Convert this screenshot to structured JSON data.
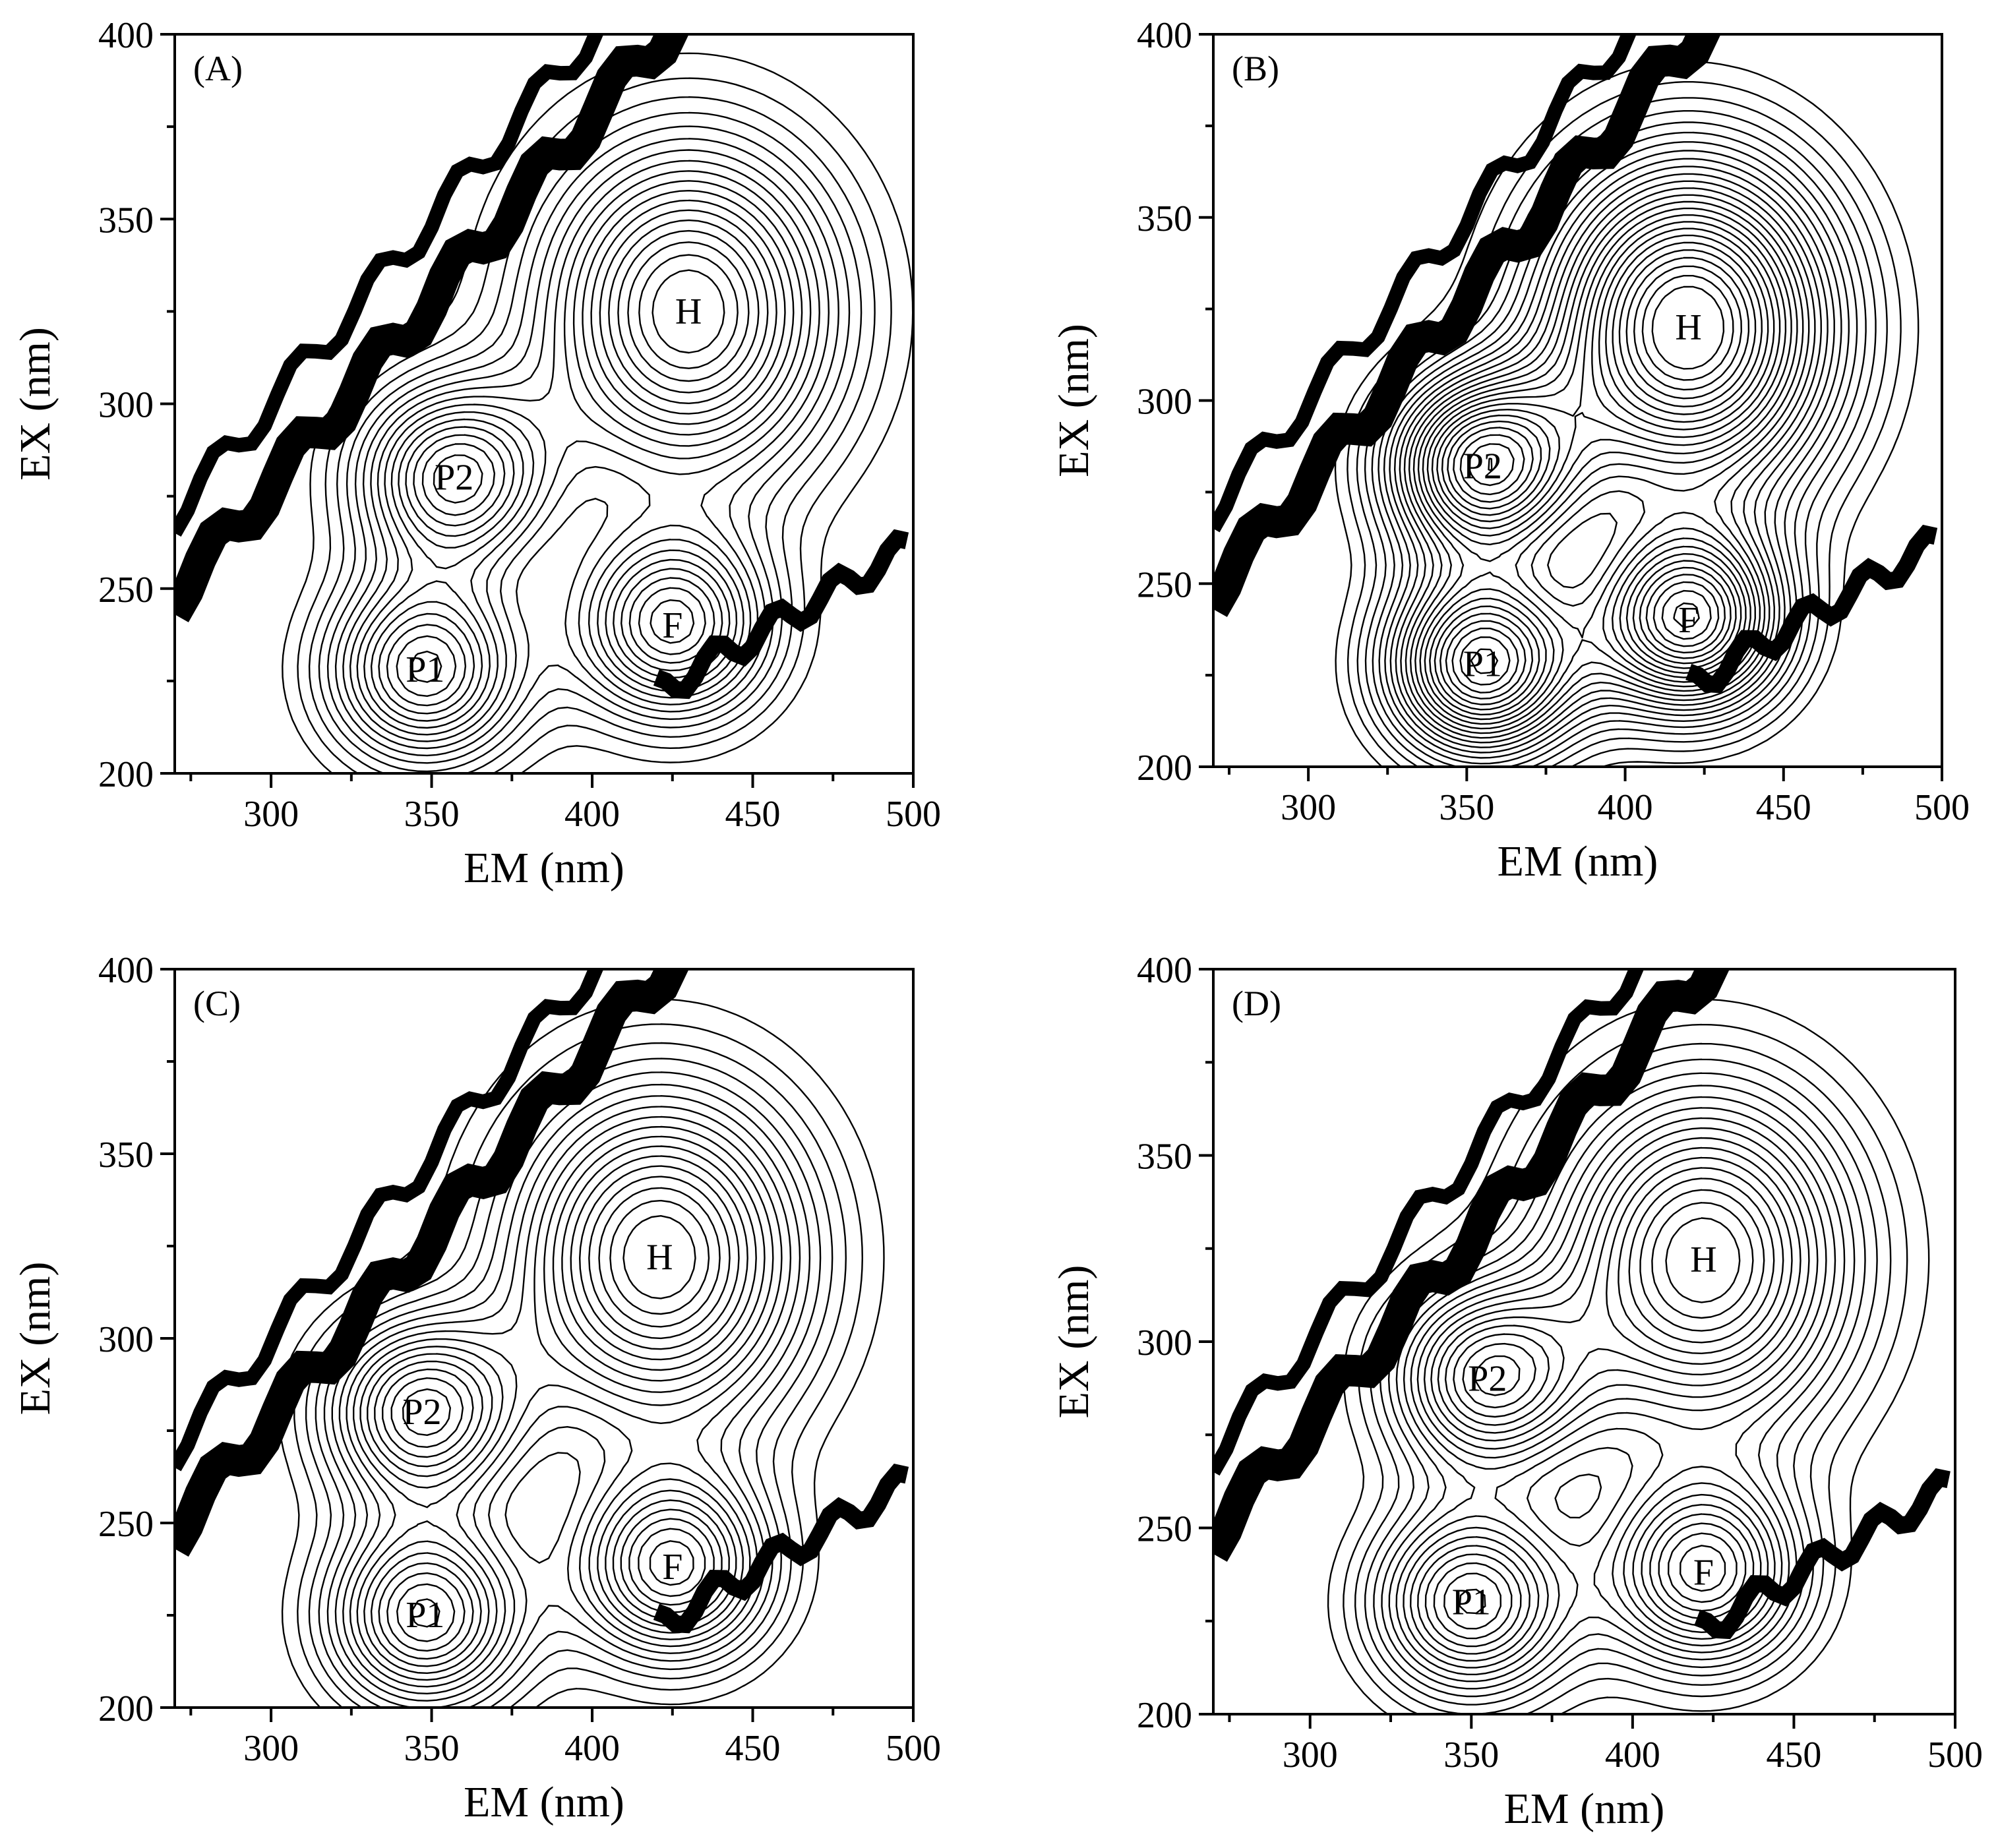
{
  "chart_data": [
    {
      "type": "contour",
      "panel_label": "(A)",
      "xlabel": "EM (nm)",
      "ylabel": "EX (nm)",
      "xlim": [
        270,
        500
      ],
      "ylim": [
        200,
        400
      ],
      "xticks": [
        300,
        350,
        400,
        450,
        500
      ],
      "yticks": [
        200,
        250,
        300,
        350,
        400
      ],
      "grid": false,
      "peaks": [
        {
          "label": "H",
          "em": 430,
          "ex": 325
        },
        {
          "label": "P2",
          "em": 357,
          "ex": 280
        },
        {
          "label": "F",
          "em": 425,
          "ex": 240
        },
        {
          "label": "P1",
          "em": 348,
          "ex": 228
        }
      ]
    },
    {
      "type": "contour",
      "panel_label": "(B)",
      "xlabel": "EM (nm)",
      "ylabel": "EX (nm)",
      "xlim": [
        270,
        500
      ],
      "ylim": [
        200,
        400
      ],
      "xticks": [
        300,
        350,
        400,
        450,
        500
      ],
      "yticks": [
        200,
        250,
        300,
        350,
        400
      ],
      "grid": false,
      "peaks": [
        {
          "label": "H",
          "em": 420,
          "ex": 320
        },
        {
          "label": "P2",
          "em": 355,
          "ex": 282
        },
        {
          "label": "F",
          "em": 420,
          "ex": 240
        },
        {
          "label": "P1",
          "em": 355,
          "ex": 228
        }
      ]
    },
    {
      "type": "contour",
      "panel_label": "(C)",
      "xlabel": "EM (nm)",
      "ylabel": "EX (nm)",
      "xlim": [
        270,
        500
      ],
      "ylim": [
        200,
        400
      ],
      "xticks": [
        300,
        350,
        400,
        450,
        500
      ],
      "yticks": [
        200,
        250,
        300,
        350,
        400
      ],
      "grid": false,
      "peaks": [
        {
          "label": "H",
          "em": 421,
          "ex": 322
        },
        {
          "label": "P2",
          "em": 347,
          "ex": 280
        },
        {
          "label": "F",
          "em": 425,
          "ex": 238
        },
        {
          "label": "P1",
          "em": 348,
          "ex": 225
        }
      ]
    },
    {
      "type": "contour",
      "panel_label": "(D)",
      "xlabel": "EM (nm)",
      "ylabel": "EX (nm)",
      "xlim": [
        270,
        500
      ],
      "ylim": [
        200,
        400
      ],
      "xticks": [
        300,
        350,
        400,
        450,
        500
      ],
      "yticks": [
        200,
        250,
        300,
        350,
        400
      ],
      "grid": false,
      "peaks": [
        {
          "label": "H",
          "em": 422,
          "ex": 322
        },
        {
          "label": "P2",
          "em": 355,
          "ex": 290
        },
        {
          "label": "F",
          "em": 422,
          "ex": 238
        },
        {
          "label": "P1",
          "em": 350,
          "ex": 230
        }
      ]
    }
  ]
}
